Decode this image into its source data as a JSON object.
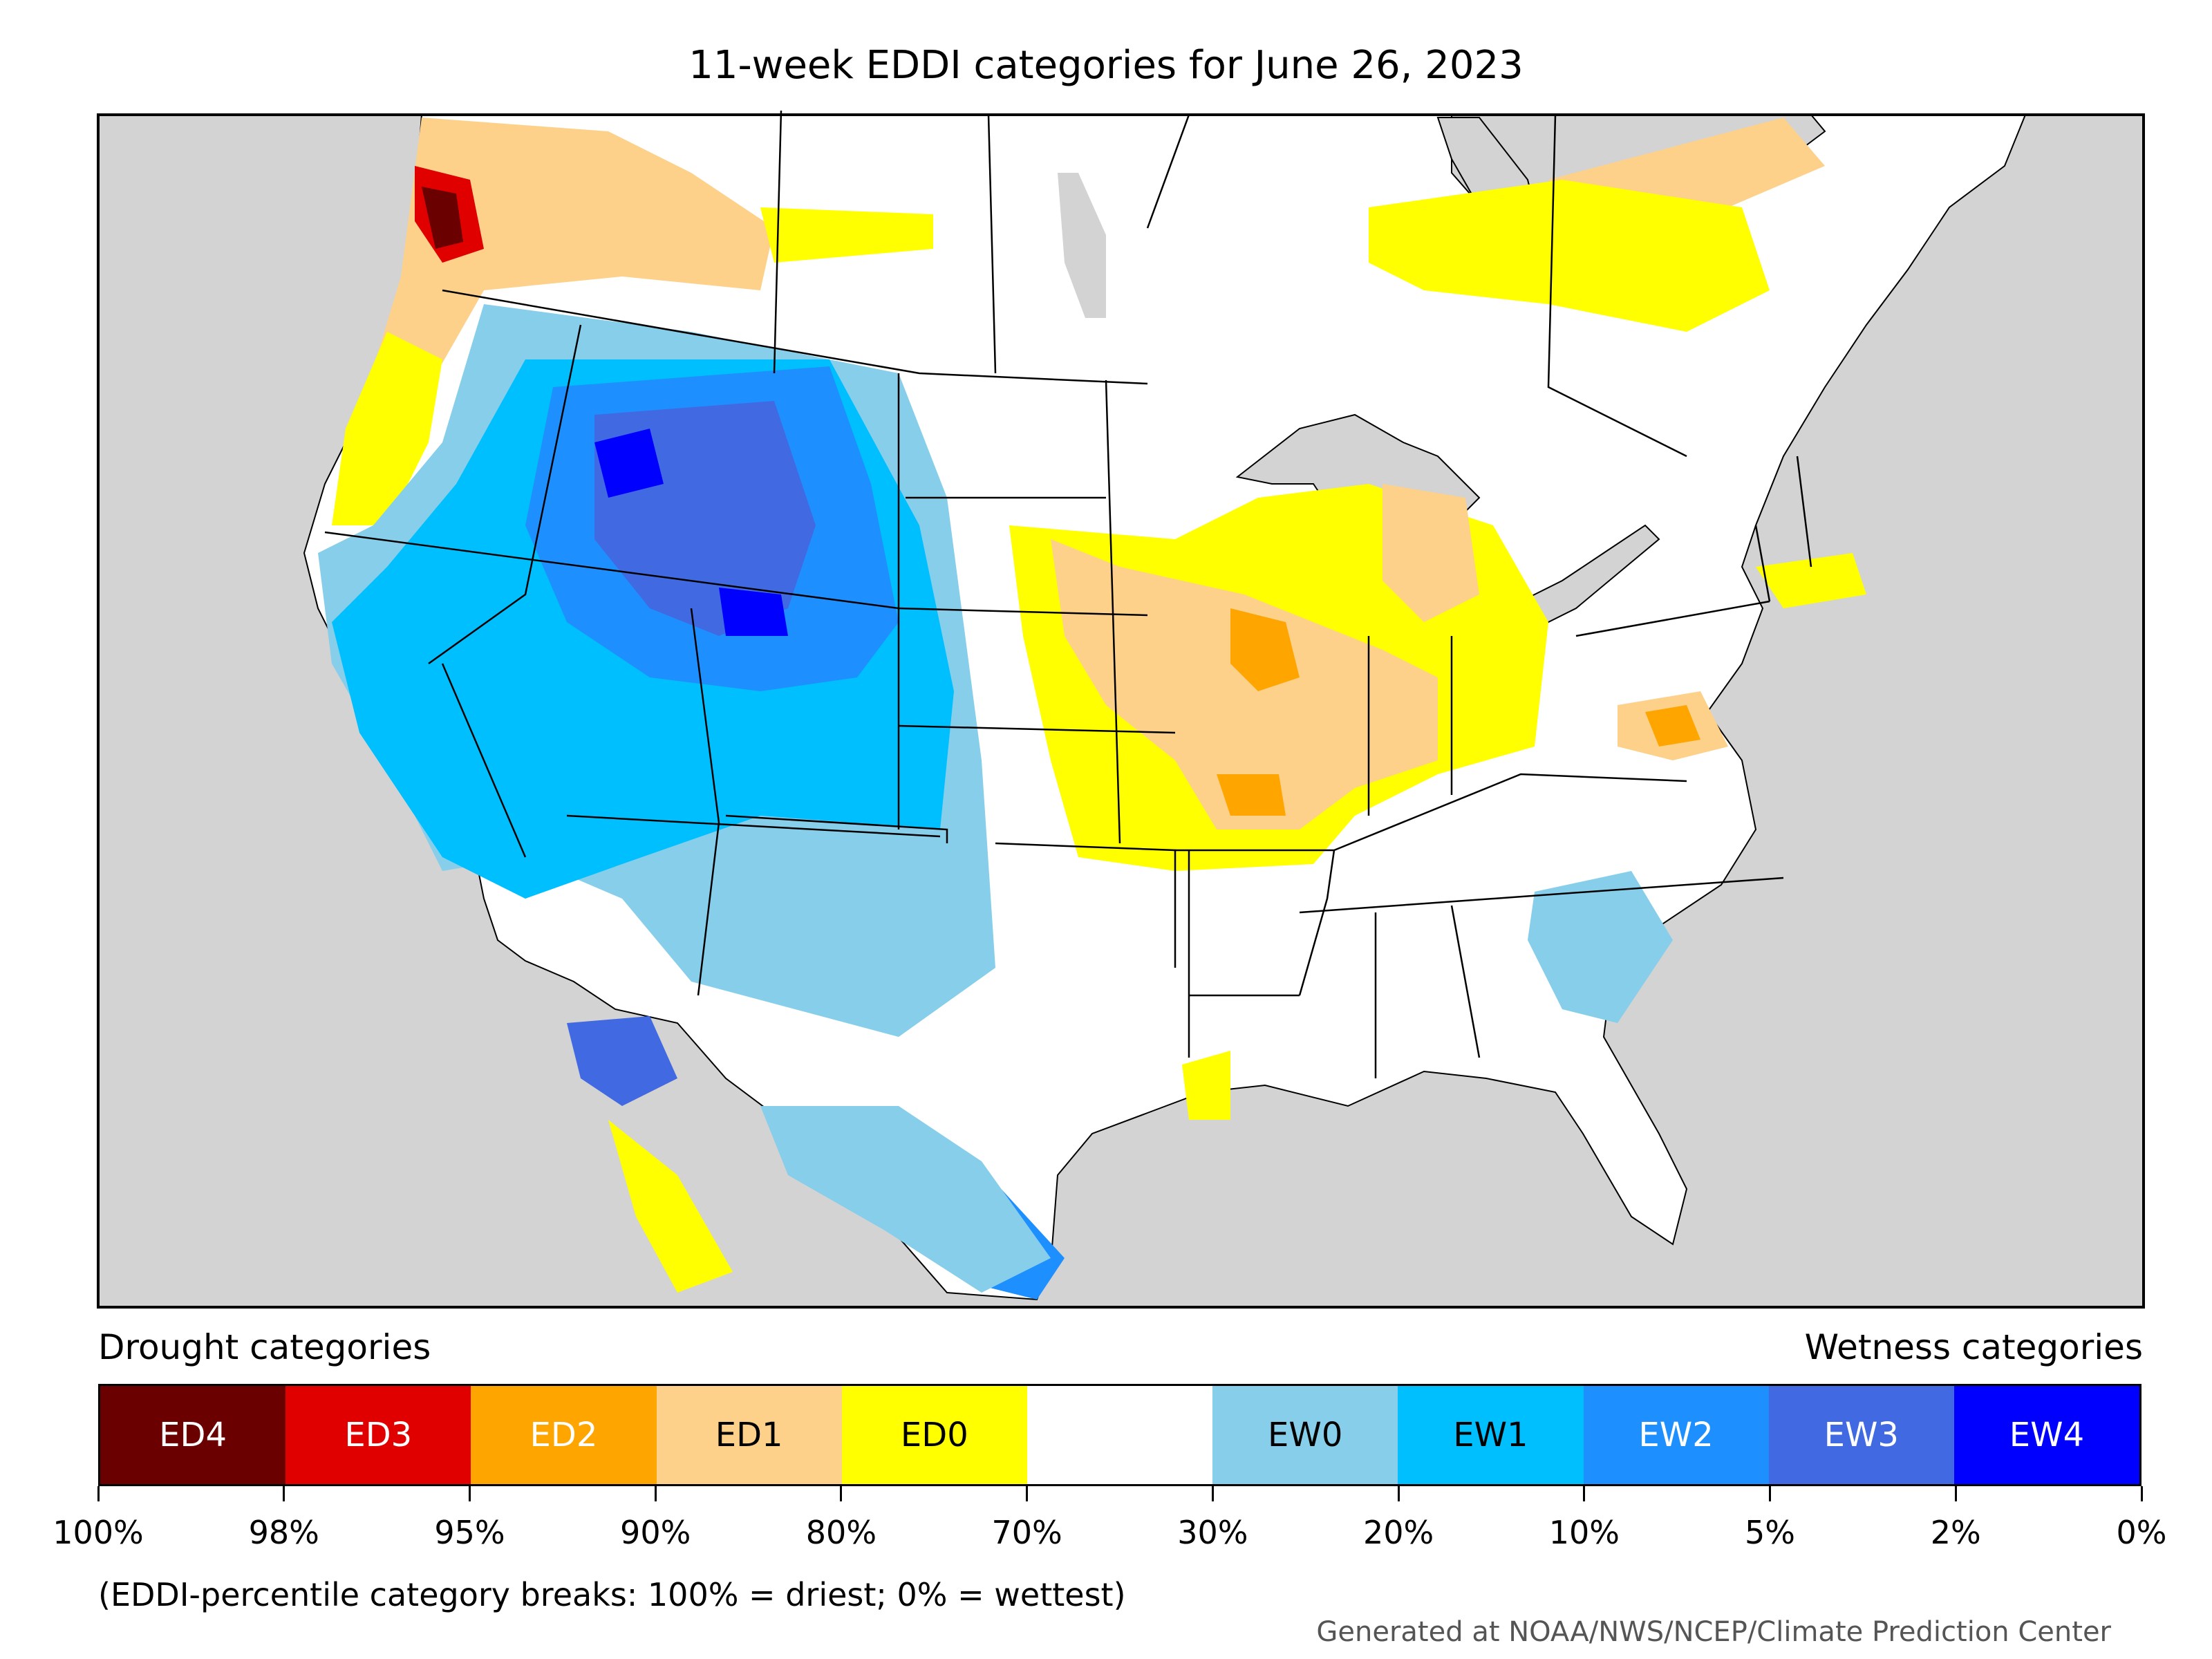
{
  "title": "11-week EDDI categories for June 26, 2023",
  "legend": {
    "drought_heading": "Drought categories",
    "wetness_heading": "Wetness categories",
    "categories": [
      {
        "label": "ED4",
        "color": "#6b0000",
        "text_color": "#ffffff"
      },
      {
        "label": "ED3",
        "color": "#e00000",
        "text_color": "#ffffff"
      },
      {
        "label": "ED2",
        "color": "#ffa500",
        "text_color": "#ffffff"
      },
      {
        "label": "ED1",
        "color": "#fdd18a",
        "text_color": "#000000"
      },
      {
        "label": "ED0",
        "color": "#ffff00",
        "text_color": "#000000"
      },
      {
        "label": "",
        "color": "#ffffff",
        "text_color": "#000000"
      },
      {
        "label": "EW0",
        "color": "#87ceeb",
        "text_color": "#000000"
      },
      {
        "label": "EW1",
        "color": "#00bfff",
        "text_color": "#000000"
      },
      {
        "label": "EW2",
        "color": "#1e8fff",
        "text_color": "#ffffff"
      },
      {
        "label": "EW3",
        "color": "#4169e1",
        "text_color": "#ffffff"
      },
      {
        "label": "EW4",
        "color": "#0000ff",
        "text_color": "#ffffff"
      }
    ],
    "tick_labels": [
      "100%",
      "98%",
      "95%",
      "90%",
      "80%",
      "70%",
      "30%",
      "20%",
      "10%",
      "5%",
      "2%",
      "0%"
    ],
    "note": "(EDDI-percentile category breaks: 100% = driest; 0% = wettest)"
  },
  "credit": "Generated at NOAA/NWS/NCEP/Climate Prediction Center",
  "map_colors": {
    "water": "#d3d3d3",
    "land": "#ffffff",
    "border": "#000000"
  }
}
